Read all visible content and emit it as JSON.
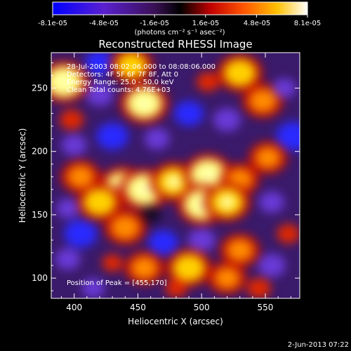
{
  "colorbar": {
    "tick_labels": [
      "-8.1e-05",
      "-4.8e-05",
      "-1.6e-05",
      "1.6e-05",
      "4.8e-05",
      "8.1e-05"
    ],
    "unit_label": "(photons cm⁻² s⁻¹ asec⁻²)",
    "range": [
      -8.1e-05,
      8.1e-05
    ]
  },
  "chart_data": {
    "type": "heatmap",
    "title": "Reconstructed RHESSI Image",
    "xlabel": "Heliocentric X (arcsec)",
    "ylabel": "Heliocentric Y (arcsec)",
    "xlim": [
      382,
      577
    ],
    "ylim": [
      84,
      278
    ],
    "x_ticks": [
      400,
      450,
      500,
      550
    ],
    "y_ticks": [
      100,
      150,
      200,
      250
    ],
    "colormap": "blue-purple-black-red-orange-yellow-white",
    "annotations": [
      "28-Jul-2003 08:02:06.000 to 08:08:06.000",
      "Detectors: 4F 5F 6F 7F 8F, Att 0",
      "Energy Range: 25.0 - 50.0 keV",
      "Clean     Total counts: 4.76E+03"
    ],
    "peak_label": "Position of Peak = [455,170]",
    "peak_position": [
      455,
      170
    ],
    "blobs": [
      {
        "x": 392,
        "y": 255,
        "v": 1.0
      },
      {
        "x": 420,
        "y": 270,
        "v": -0.7
      },
      {
        "x": 398,
        "y": 225,
        "v": 0.45
      },
      {
        "x": 420,
        "y": 245,
        "v": -0.6
      },
      {
        "x": 445,
        "y": 268,
        "v": 0.7
      },
      {
        "x": 455,
        "y": 238,
        "v": 0.95
      },
      {
        "x": 465,
        "y": 210,
        "v": -0.5
      },
      {
        "x": 490,
        "y": 230,
        "v": -0.7
      },
      {
        "x": 505,
        "y": 255,
        "v": 0.4
      },
      {
        "x": 530,
        "y": 262,
        "v": 0.8
      },
      {
        "x": 548,
        "y": 240,
        "v": 0.6
      },
      {
        "x": 565,
        "y": 250,
        "v": -0.4
      },
      {
        "x": 520,
        "y": 225,
        "v": -0.6
      },
      {
        "x": 572,
        "y": 212,
        "v": -0.9
      },
      {
        "x": 552,
        "y": 195,
        "v": 0.5
      },
      {
        "x": 430,
        "y": 212,
        "v": -0.8
      },
      {
        "x": 400,
        "y": 205,
        "v": -0.5
      },
      {
        "x": 405,
        "y": 180,
        "v": 0.55
      },
      {
        "x": 438,
        "y": 172,
        "v": 0.95
      },
      {
        "x": 455,
        "y": 170,
        "v": 1.0
      },
      {
        "x": 478,
        "y": 176,
        "v": 0.85
      },
      {
        "x": 505,
        "y": 182,
        "v": 0.95
      },
      {
        "x": 530,
        "y": 178,
        "v": 0.5
      },
      {
        "x": 420,
        "y": 160,
        "v": 0.8
      },
      {
        "x": 395,
        "y": 155,
        "v": -0.4
      },
      {
        "x": 460,
        "y": 150,
        "v": -0.3
      },
      {
        "x": 500,
        "y": 158,
        "v": 0.95
      },
      {
        "x": 520,
        "y": 160,
        "v": 0.85
      },
      {
        "x": 555,
        "y": 160,
        "v": -0.5
      },
      {
        "x": 568,
        "y": 135,
        "v": 0.4
      },
      {
        "x": 405,
        "y": 135,
        "v": -0.85
      },
      {
        "x": 440,
        "y": 140,
        "v": 0.65
      },
      {
        "x": 470,
        "y": 128,
        "v": -0.7
      },
      {
        "x": 500,
        "y": 130,
        "v": -0.6
      },
      {
        "x": 530,
        "y": 122,
        "v": 0.55
      },
      {
        "x": 430,
        "y": 112,
        "v": 0.3
      },
      {
        "x": 455,
        "y": 108,
        "v": 0.55
      },
      {
        "x": 490,
        "y": 108,
        "v": 0.8
      },
      {
        "x": 520,
        "y": 100,
        "v": 0.5
      },
      {
        "x": 555,
        "y": 110,
        "v": -0.6
      },
      {
        "x": 395,
        "y": 115,
        "v": -0.5
      },
      {
        "x": 545,
        "y": 92,
        "v": 0.45
      },
      {
        "x": 480,
        "y": 92,
        "v": 0.35
      },
      {
        "x": 415,
        "y": 92,
        "v": -0.4
      }
    ]
  },
  "footer": {
    "timestamp": "2-Jun-2013 07:22"
  }
}
